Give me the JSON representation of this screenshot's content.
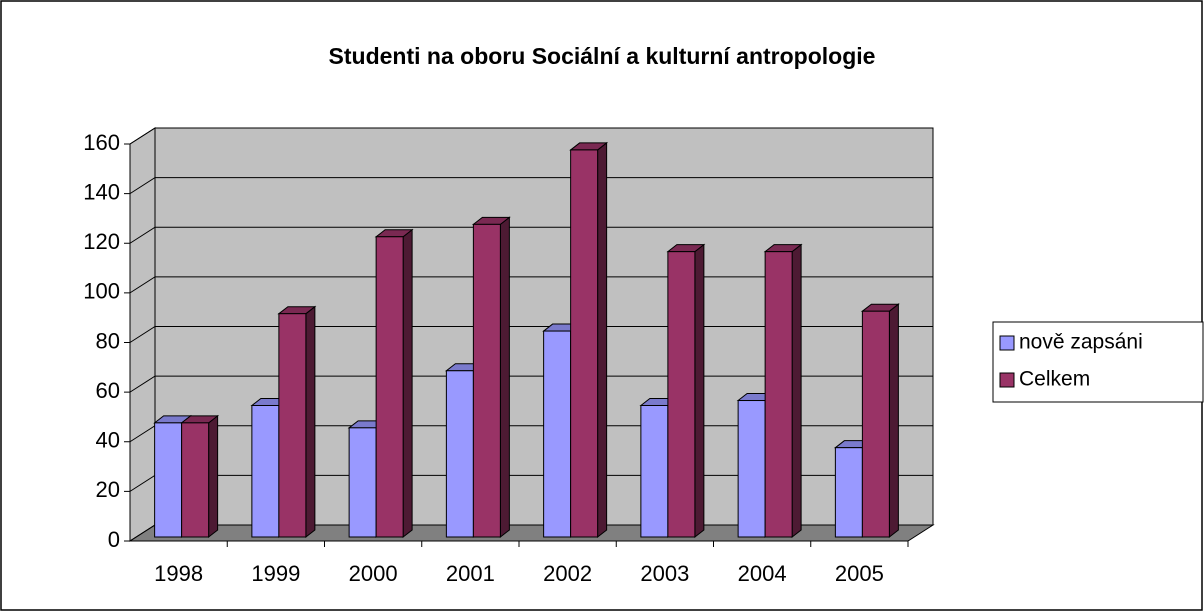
{
  "chart_data": {
    "type": "bar3d",
    "title": "Studenti na oboru Sociální a kulturní antropologie",
    "categories": [
      "1998",
      "1999",
      "2000",
      "2001",
      "2002",
      "2003",
      "2004",
      "2005"
    ],
    "series": [
      {
        "name": "nově zapsáni",
        "color": "#9999ff",
        "values": [
          46,
          53,
          44,
          67,
          83,
          53,
          55,
          36
        ]
      },
      {
        "name": "Celkem",
        "color": "#993366",
        "values": [
          46,
          90,
          121,
          126,
          156,
          115,
          115,
          91
        ]
      }
    ],
    "ylim": [
      0,
      160
    ],
    "yticks": [
      0,
      20,
      40,
      60,
      80,
      100,
      120,
      140,
      160
    ],
    "grid": true,
    "legend": "right"
  }
}
